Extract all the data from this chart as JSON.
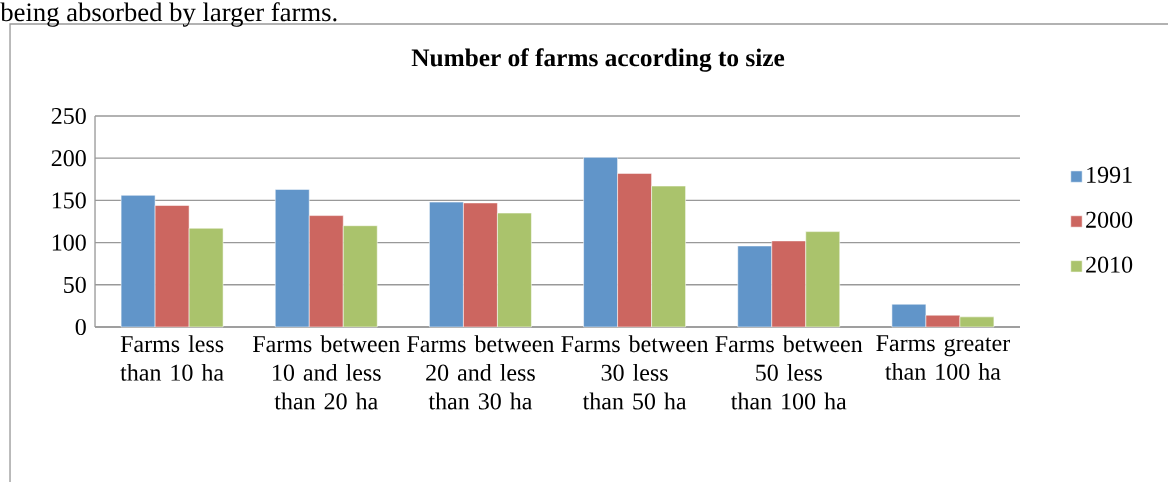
{
  "chart_data": {
    "type": "bar",
    "title": "Number of farms according to size",
    "annotations": [
      "being absorbed by larger farms."
    ],
    "categories": [
      "Farms less than 10 ha",
      "Farms between 10 and less than 20 ha",
      "Farms between 20 and less than 30 ha",
      "Farms between 30 less than 50 ha",
      "Farms between 50 less than 100 ha",
      "Farms greater than 100 ha"
    ],
    "series": [
      {
        "name": "1991",
        "color": "#6195c9",
        "values": [
          156,
          163,
          148,
          201,
          96,
          27
        ]
      },
      {
        "name": "2000",
        "color": "#cc6660",
        "values": [
          144,
          132,
          147,
          182,
          102,
          14
        ]
      },
      {
        "name": "2010",
        "color": "#aac36c",
        "values": [
          117,
          120,
          135,
          167,
          113,
          12
        ]
      }
    ],
    "ylim": [
      0,
      250
    ],
    "yticks": [
      0,
      50,
      100,
      150,
      200,
      250
    ],
    "grid": "y",
    "legend": "right"
  }
}
